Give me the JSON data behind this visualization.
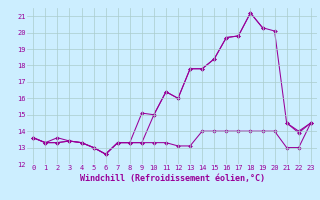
{
  "x": [
    0,
    1,
    2,
    3,
    4,
    5,
    6,
    7,
    8,
    9,
    10,
    11,
    12,
    13,
    14,
    15,
    16,
    17,
    18,
    19,
    20,
    21,
    22,
    23
  ],
  "line1": [
    13.6,
    13.3,
    13.3,
    13.4,
    13.3,
    13.0,
    12.6,
    13.3,
    13.3,
    15.1,
    15.0,
    16.4,
    16.0,
    17.8,
    17.8,
    18.4,
    19.7,
    19.8,
    21.2,
    20.3,
    null,
    14.5,
    13.9,
    14.5
  ],
  "line2": [
    13.6,
    13.3,
    13.6,
    13.4,
    13.3,
    13.0,
    12.6,
    13.3,
    13.3,
    13.3,
    13.3,
    13.3,
    13.1,
    13.1,
    14.0,
    14.0,
    14.0,
    14.0,
    14.0,
    14.0,
    14.0,
    13.0,
    13.0,
    14.5
  ],
  "line3": [
    13.6,
    13.3,
    13.3,
    13.4,
    13.3,
    13.0,
    12.6,
    13.3,
    13.3,
    13.3,
    15.0,
    16.4,
    16.0,
    17.8,
    17.8,
    18.4,
    19.7,
    19.8,
    21.2,
    20.3,
    20.1,
    14.5,
    14.0,
    14.5
  ],
  "color": "#990099",
  "bg_color": "#cceeff",
  "grid_color": "#aacccc",
  "xlabel": "Windchill (Refroidissement éolien,°C)",
  "ylim": [
    12,
    21.5
  ],
  "xlim": [
    -0.5,
    23.5
  ],
  "yticks": [
    12,
    13,
    14,
    15,
    16,
    17,
    18,
    19,
    20,
    21
  ],
  "xticks": [
    0,
    1,
    2,
    3,
    4,
    5,
    6,
    7,
    8,
    9,
    10,
    11,
    12,
    13,
    14,
    15,
    16,
    17,
    18,
    19,
    20,
    21,
    22,
    23
  ],
  "tick_fontsize": 5.0,
  "xlabel_fontsize": 6.0,
  "marker": "D",
  "markersize": 2.0,
  "linewidth": 0.75
}
